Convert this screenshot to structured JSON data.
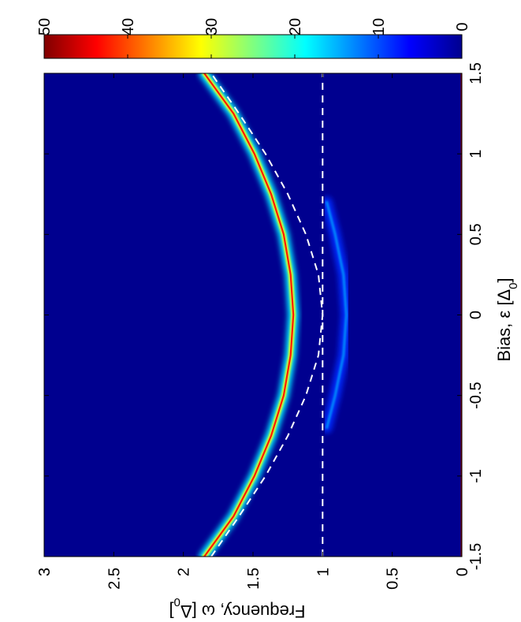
{
  "chart_data": {
    "type": "heatmap",
    "orientation": "rotated-90-ccw",
    "x_axis": {
      "label": "Bias, ε [Δ",
      "label_sub": "0",
      "label_suffix": "]",
      "range": [
        -1.5,
        1.5
      ],
      "ticks": [
        -1.5,
        -1,
        -0.5,
        0,
        0.5,
        1,
        1.5
      ],
      "tick_labels": [
        "-1.5",
        "-1",
        "-0.5",
        "0",
        "0.5",
        "1",
        "1.5"
      ]
    },
    "y_axis": {
      "label": "Frequency, ω [Δ",
      "label_sub": "0",
      "label_suffix": "]",
      "range": [
        0,
        3
      ],
      "ticks": [
        0,
        0.5,
        1,
        1.5,
        2,
        2.5,
        3
      ],
      "tick_labels": [
        "0",
        "0.5",
        "1",
        "1.5",
        "2",
        "2.5",
        "3"
      ]
    },
    "colorbar": {
      "range": [
        0,
        50
      ],
      "ticks": [
        0,
        10,
        20,
        30,
        40,
        50
      ],
      "tick_labels": [
        "0",
        "10",
        "20",
        "30",
        "40",
        "50"
      ],
      "colormap": "jet"
    },
    "series": [
      {
        "style": "bright-band",
        "x": [
          -1.5,
          -1.25,
          -1,
          -0.75,
          -0.5,
          -0.25,
          0,
          0.25,
          0.5,
          0.75,
          1,
          1.25,
          1.5
        ],
        "y": [
          1.85,
          1.64,
          1.49,
          1.37,
          1.28,
          1.23,
          1.21,
          1.23,
          1.28,
          1.37,
          1.49,
          1.64,
          1.85
        ],
        "peak": 50
      },
      {
        "style": "faint-band",
        "x": [
          -0.7,
          -0.5,
          -0.25,
          0,
          0.25,
          0.5,
          0.7
        ],
        "y": [
          0.97,
          0.91,
          0.85,
          0.83,
          0.85,
          0.91,
          0.97
        ],
        "peak": 14
      },
      {
        "style": "dashed",
        "x": [
          -1.5,
          -1.25,
          -1,
          -0.75,
          -0.5,
          -0.25,
          0,
          0.25,
          0.5,
          0.75,
          1,
          1.25,
          1.5
        ],
        "y": [
          1.8,
          1.6,
          1.41,
          1.25,
          1.12,
          1.03,
          1.0,
          1.03,
          1.12,
          1.25,
          1.41,
          1.6,
          1.8
        ]
      },
      {
        "style": "dashed",
        "x": [
          -1.5,
          1.5
        ],
        "y": [
          1.0,
          1.0
        ]
      },
      {
        "style": "edge-line",
        "x": [
          -1.5,
          1.5
        ],
        "y": [
          0.0,
          0.0
        ],
        "peak": 50
      }
    ],
    "colors": {
      "background": "#00008f",
      "dashed_line": "#ffffff"
    }
  }
}
